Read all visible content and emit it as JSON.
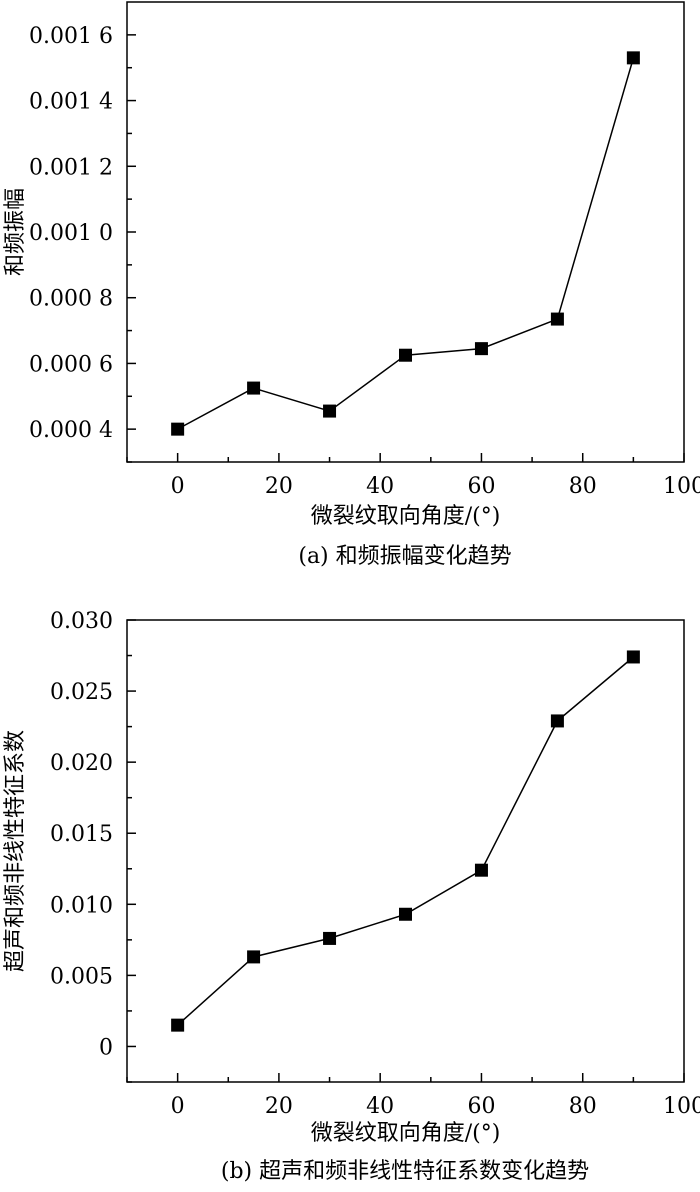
{
  "chart_data": [
    {
      "type": "scatter",
      "caption": "(a) 和频振幅变化趋势",
      "xlabel": "微裂纹取向角度/(°)",
      "ylabel": "和频振幅",
      "xlim": [
        -10,
        100
      ],
      "ylim": [
        0.0003,
        0.0017
      ],
      "xticks": [
        0,
        20,
        40,
        60,
        80,
        100
      ],
      "xtick_labels": [
        "0",
        "20",
        "40",
        "60",
        "80",
        "100"
      ],
      "yticks": [
        0.0004,
        0.0006,
        0.0008,
        0.001,
        0.0012,
        0.0014,
        0.0016
      ],
      "ytick_labels": [
        "0.000 4",
        "0.000 6",
        "0.000 8",
        "0.001 0",
        "0.001 2",
        "0.001 4",
        "0.001 6"
      ],
      "marker": "square",
      "connected": true,
      "color": "#000000",
      "x": [
        0,
        15,
        30,
        45,
        60,
        75,
        90
      ],
      "y": [
        0.0004,
        0.000525,
        0.000455,
        0.000625,
        0.000645,
        0.000735,
        0.00153
      ]
    },
    {
      "type": "scatter",
      "caption": "(b) 超声和频非线性特征系数变化趋势",
      "xlabel": "微裂纹取向角度/(°)",
      "ylabel": "超声和频非线性特征系数",
      "xlim": [
        -10,
        100
      ],
      "ylim": [
        -0.0025,
        0.03
      ],
      "xticks": [
        0,
        20,
        40,
        60,
        80,
        100
      ],
      "xtick_labels": [
        "0",
        "20",
        "40",
        "60",
        "80",
        "100"
      ],
      "yticks": [
        0,
        0.005,
        0.01,
        0.015,
        0.02,
        0.025,
        0.03
      ],
      "ytick_labels": [
        "0",
        "0.005",
        "0.010",
        "0.015",
        "0.020",
        "0.025",
        "0.030"
      ],
      "marker": "square",
      "connected": true,
      "color": "#000000",
      "x": [
        0,
        15,
        30,
        45,
        60,
        75,
        90
      ],
      "y": [
        0.0015,
        0.0063,
        0.0076,
        0.0093,
        0.0124,
        0.0229,
        0.0274
      ]
    }
  ]
}
